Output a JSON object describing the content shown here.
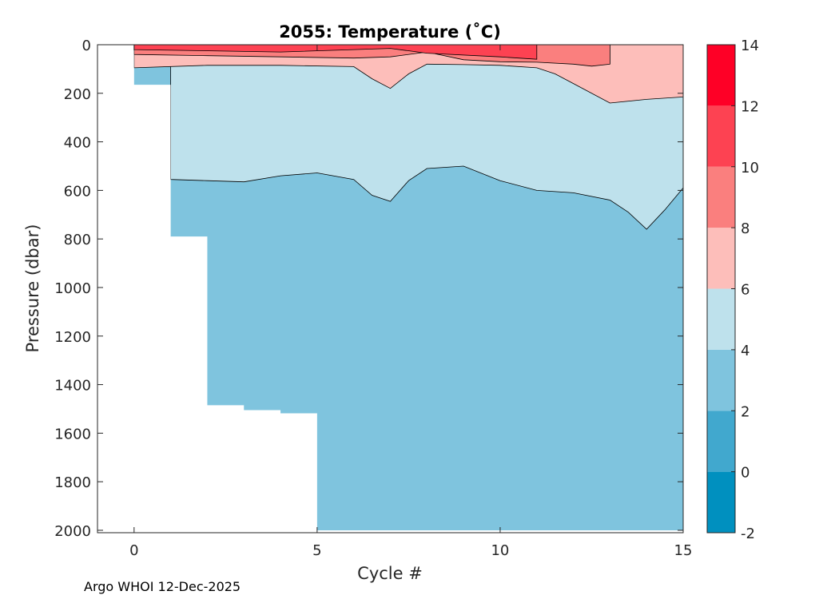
{
  "chart_data": {
    "type": "contour",
    "title": "2055:  Temperature (˚C)",
    "xlabel": "Cycle #",
    "ylabel": "Pressure (dbar)",
    "xlim": [
      -1,
      15
    ],
    "ylim": [
      0,
      2010
    ],
    "y_reversed": true,
    "x_ticks": [
      0,
      5,
      10,
      15
    ],
    "y_ticks": [
      0,
      200,
      400,
      600,
      800,
      1000,
      1200,
      1400,
      1600,
      1800,
      2000
    ],
    "colorbar": {
      "ticks": [
        -2,
        0,
        2,
        4,
        6,
        8,
        10,
        12,
        14
      ],
      "levels": [
        {
          "from": -2,
          "to": 0,
          "color": "#0090BF"
        },
        {
          "from": 0,
          "to": 2,
          "color": "#41A8CE"
        },
        {
          "from": 2,
          "to": 4,
          "color": "#7FC4DE"
        },
        {
          "from": 4,
          "to": 6,
          "color": "#BEE1EC"
        },
        {
          "from": 6,
          "to": 8,
          "color": "#FDBEBA"
        },
        {
          "from": 8,
          "to": 10,
          "color": "#FA7F7E"
        },
        {
          "from": 10,
          "to": 12,
          "color": "#FD4252"
        },
        {
          "from": 12,
          "to": 14,
          "color": "#FE0026"
        }
      ]
    },
    "profile_max_depth": [
      {
        "cycle": 0,
        "pressure": 165
      },
      {
        "cycle": 1,
        "pressure": 790
      },
      {
        "cycle": 2,
        "pressure": 1485
      },
      {
        "cycle": 3,
        "pressure": 1505
      },
      {
        "cycle": 4,
        "pressure": 1518
      },
      {
        "cycle": 5,
        "pressure": 2000
      },
      {
        "cycle": 15,
        "pressure": 2000
      }
    ],
    "isotherm_4C": [
      [
        1,
        555
      ],
      [
        2,
        560
      ],
      [
        3,
        565
      ],
      [
        4,
        540
      ],
      [
        5,
        528
      ],
      [
        6,
        555
      ],
      [
        6.5,
        620
      ],
      [
        7,
        645
      ],
      [
        7.5,
        560
      ],
      [
        8,
        510
      ],
      [
        9,
        500
      ],
      [
        10,
        560
      ],
      [
        11,
        600
      ],
      [
        12,
        610
      ],
      [
        13,
        640
      ],
      [
        13.5,
        690
      ],
      [
        14,
        760
      ],
      [
        14.5,
        680
      ],
      [
        15,
        590
      ]
    ],
    "isotherm_6C": [
      [
        0,
        95
      ],
      [
        2,
        85
      ],
      [
        4,
        85
      ],
      [
        6,
        90
      ],
      [
        6.5,
        140
      ],
      [
        7,
        180
      ],
      [
        7.5,
        120
      ],
      [
        8,
        80
      ],
      [
        9,
        82
      ],
      [
        10,
        85
      ],
      [
        11,
        95
      ],
      [
        11.5,
        120
      ],
      [
        12,
        160
      ],
      [
        13,
        240
      ],
      [
        14,
        225
      ],
      [
        15,
        215
      ]
    ],
    "isotherm_8C": [
      [
        0,
        40
      ],
      [
        2,
        45
      ],
      [
        4,
        50
      ],
      [
        6,
        55
      ],
      [
        7,
        50
      ],
      [
        8,
        30
      ],
      [
        9,
        62
      ],
      [
        10,
        70
      ],
      [
        11,
        72
      ],
      [
        12,
        80
      ],
      [
        12.5,
        88
      ],
      [
        13,
        80
      ],
      [
        13,
        0
      ]
    ],
    "isotherm_10C": [
      [
        0,
        20
      ],
      [
        4,
        30
      ],
      [
        6,
        20
      ],
      [
        7,
        15
      ],
      [
        8,
        35
      ],
      [
        10,
        50
      ],
      [
        11,
        60
      ],
      [
        11,
        0
      ]
    ],
    "footer": "Argo WHOI 12-Dec-2025"
  }
}
